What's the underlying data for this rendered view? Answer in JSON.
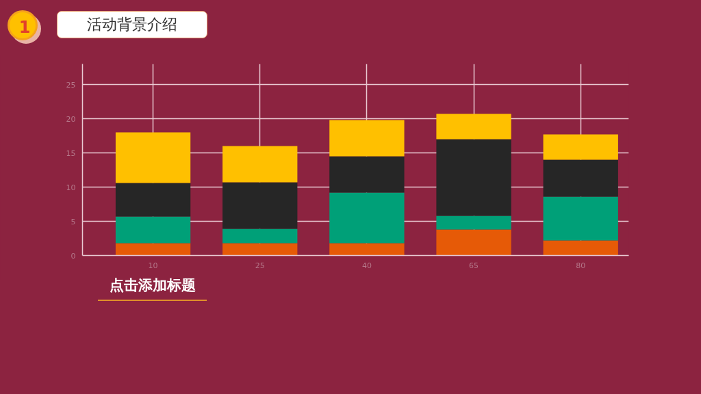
{
  "chart_data": {
    "type": "bar",
    "title": "活动背景介绍",
    "annotations": [
      "1",
      "点击添加标题"
    ],
    "categories": [
      "10",
      "25",
      "40",
      "65",
      "80"
    ],
    "stacked": true,
    "series": [
      {
        "color": "#e65a07",
        "values": [
          1.8,
          1.8,
          1.8,
          3.8,
          2.2
        ]
      },
      {
        "color": "#00a078",
        "values": [
          3.9,
          2.1,
          7.4,
          2.0,
          6.4
        ]
      },
      {
        "color": "#262626",
        "values": [
          4.9,
          6.8,
          5.3,
          11.2,
          5.4
        ]
      },
      {
        "color": "#ffc000",
        "values": [
          7.4,
          5.3,
          5.3,
          3.7,
          3.7
        ]
      }
    ],
    "ylim": [
      0,
      28
    ],
    "yticks": [
      0,
      5,
      10,
      15,
      20,
      25
    ],
    "grid": true
  }
}
